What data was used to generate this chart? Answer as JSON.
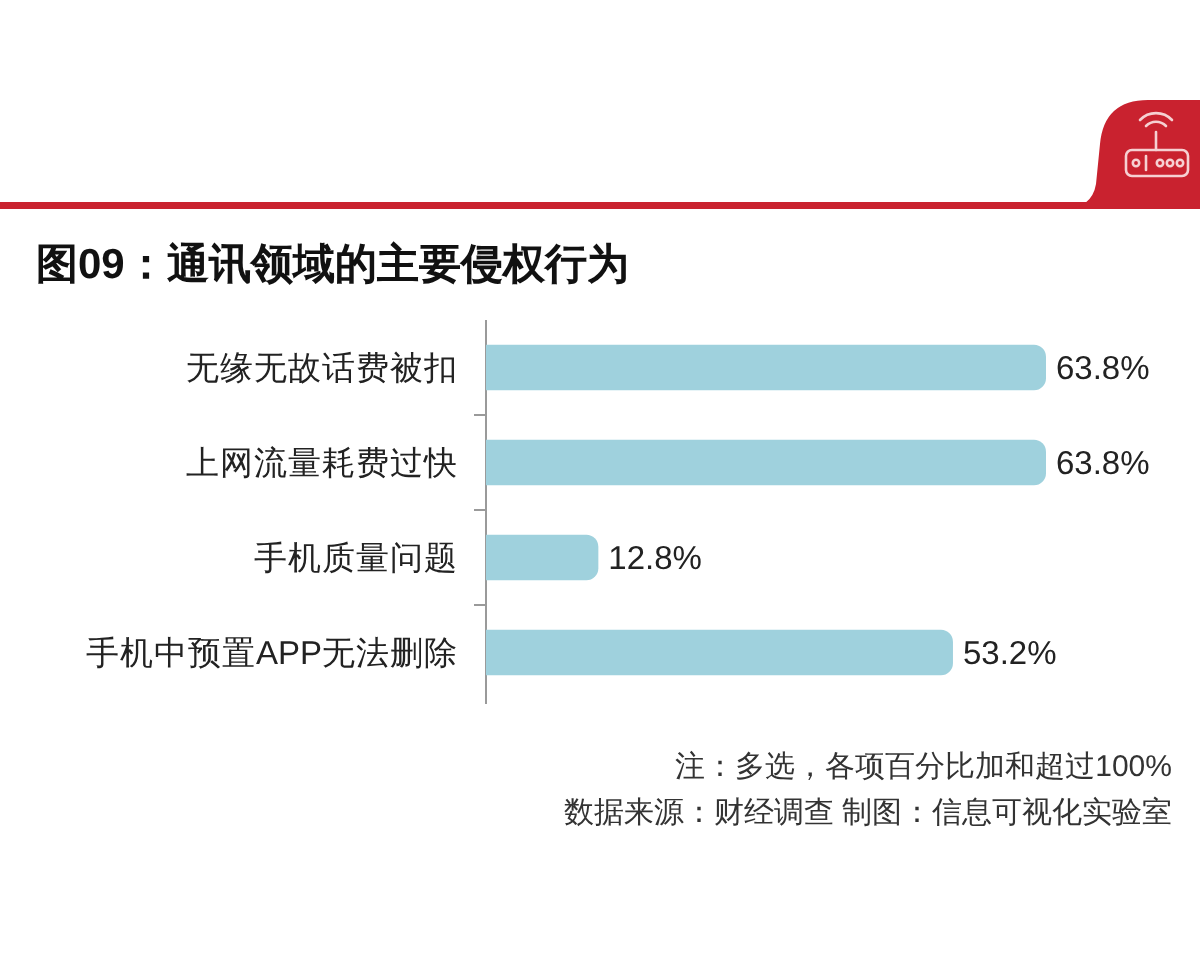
{
  "chart_data": {
    "type": "bar",
    "orientation": "horizontal",
    "title": "图09：通讯领域的主要侵权行为",
    "categories": [
      "无缘无故话费被扣",
      "上网流量耗费过快",
      "手机质量问题",
      "手机中预置APP无法删除"
    ],
    "values": [
      63.8,
      63.8,
      12.8,
      53.2
    ],
    "color": "#9fd1dd",
    "value_labels": [
      "63.8%",
      "63.8%",
      "12.8%",
      "53.2%"
    ],
    "annotations": [
      "注：多选，各项百分比加和超过100%",
      "数据来源：财经调查 制图：信息可视化实验室"
    ]
  }
}
